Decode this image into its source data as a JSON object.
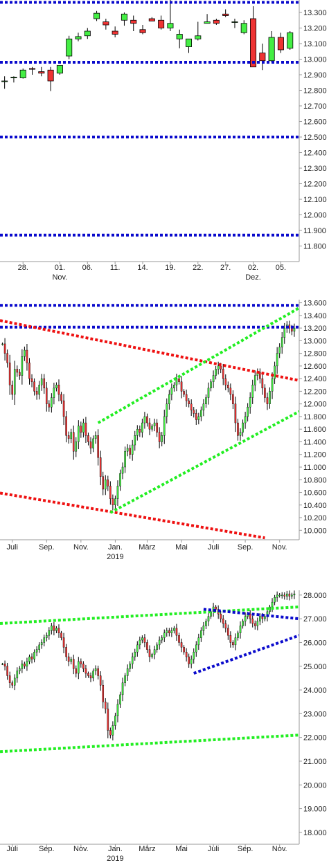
{
  "colors": {
    "up": "#44ee44",
    "down": "#ee3333",
    "outline": "#000000",
    "blue": "#0a0acc",
    "red": "#ee1111",
    "green": "#22ee22",
    "grid": "#cccccc",
    "axis": "#999999"
  },
  "chart_data": [
    {
      "type": "candlestick",
      "ylim": [
        11700,
        13380
      ],
      "yticks": [
        11800,
        11900,
        12000,
        12100,
        12200,
        12300,
        12400,
        12500,
        12600,
        12700,
        12800,
        12900,
        13000,
        13100,
        13200,
        13300
      ],
      "ytick_labels": [
        "11.800",
        "11.900",
        "12.000",
        "12.100",
        "12.200",
        "12.300",
        "12.400",
        "12.500",
        "12.600",
        "12.700",
        "12.800",
        "12.900",
        "13.000",
        "13.100",
        "13.200",
        "13.300"
      ],
      "xlim": [
        -0.5,
        32
      ],
      "xticks": [
        {
          "x": 2,
          "label": "28."
        },
        {
          "x": 6,
          "label": "01.",
          "sub": "Nov."
        },
        {
          "x": 9,
          "label": "06."
        },
        {
          "x": 12,
          "label": "11."
        },
        {
          "x": 15,
          "label": "14."
        },
        {
          "x": 18,
          "label": "19."
        },
        {
          "x": 21,
          "label": "22."
        },
        {
          "x": 24,
          "label": "27."
        },
        {
          "x": 27,
          "label": "02.",
          "sub": "Dez."
        },
        {
          "x": 30,
          "label": "05."
        }
      ],
      "candles": [
        {
          "x": 0,
          "o": 12860,
          "h": 12890,
          "l": 12810,
          "c": 12860
        },
        {
          "x": 1,
          "o": 12880,
          "h": 12890,
          "l": 12850,
          "c": 12885
        },
        {
          "x": 2,
          "o": 12880,
          "h": 12940,
          "l": 12875,
          "c": 12930
        },
        {
          "x": 3,
          "o": 12940,
          "h": 12950,
          "l": 12900,
          "c": 12935
        },
        {
          "x": 4,
          "o": 12920,
          "h": 12950,
          "l": 12890,
          "c": 12910
        },
        {
          "x": 5,
          "o": 12930,
          "h": 12950,
          "l": 12795,
          "c": 12860
        },
        {
          "x": 6,
          "o": 12910,
          "h": 12960,
          "l": 12900,
          "c": 12960
        },
        {
          "x": 7,
          "o": 13020,
          "h": 13150,
          "l": 13000,
          "c": 13130
        },
        {
          "x": 8,
          "o": 13130,
          "h": 13170,
          "l": 13115,
          "c": 13145
        },
        {
          "x": 9,
          "o": 13150,
          "h": 13200,
          "l": 13130,
          "c": 13180
        },
        {
          "x": 10,
          "o": 13260,
          "h": 13310,
          "l": 13245,
          "c": 13295
        },
        {
          "x": 11,
          "o": 13240,
          "h": 13260,
          "l": 13190,
          "c": 13220
        },
        {
          "x": 12,
          "o": 13180,
          "h": 13210,
          "l": 13140,
          "c": 13160
        },
        {
          "x": 13,
          "o": 13250,
          "h": 13300,
          "l": 13215,
          "c": 13290
        },
        {
          "x": 14,
          "o": 13250,
          "h": 13280,
          "l": 13180,
          "c": 13230
        },
        {
          "x": 15,
          "o": 13190,
          "h": 13220,
          "l": 13160,
          "c": 13170
        },
        {
          "x": 16,
          "o": 13260,
          "h": 13270,
          "l": 13250,
          "c": 13245
        },
        {
          "x": 17,
          "o": 13250,
          "h": 13280,
          "l": 13190,
          "c": 13200
        },
        {
          "x": 18,
          "o": 13200,
          "h": 13380,
          "l": 13180,
          "c": 13230
        },
        {
          "x": 19,
          "o": 13130,
          "h": 13190,
          "l": 13070,
          "c": 13160
        },
        {
          "x": 20,
          "o": 13080,
          "h": 13130,
          "l": 13040,
          "c": 13130
        },
        {
          "x": 21,
          "o": 13130,
          "h": 13240,
          "l": 13120,
          "c": 13150
        },
        {
          "x": 22,
          "o": 13230,
          "h": 13290,
          "l": 13230,
          "c": 13240
        },
        {
          "x": 23,
          "o": 13250,
          "h": 13260,
          "l": 13220,
          "c": 13230
        },
        {
          "x": 24,
          "o": 13290,
          "h": 13320,
          "l": 13270,
          "c": 13280
        },
        {
          "x": 25,
          "o": 13240,
          "h": 13260,
          "l": 13200,
          "c": 13240
        },
        {
          "x": 26,
          "o": 13170,
          "h": 13250,
          "l": 13160,
          "c": 13230
        },
        {
          "x": 27,
          "o": 13260,
          "h": 13340,
          "l": 12950,
          "c": 12950
        },
        {
          "x": 28,
          "o": 13040,
          "h": 13100,
          "l": 12930,
          "c": 12990
        },
        {
          "x": 29,
          "o": 12990,
          "h": 13180,
          "l": 12980,
          "c": 13140
        },
        {
          "x": 30,
          "o": 13140,
          "h": 13170,
          "l": 13040,
          "c": 13060
        },
        {
          "x": 31,
          "o": 13070,
          "h": 13180,
          "l": 13060,
          "c": 13170
        }
      ],
      "lines": [
        {
          "color": "blue",
          "style": "dotted",
          "x1": -0.5,
          "y1": 13365,
          "x2": 32,
          "y2": 13365
        },
        {
          "color": "blue",
          "style": "dotted",
          "x1": -0.5,
          "y1": 12980,
          "x2": 32,
          "y2": 12980
        },
        {
          "color": "blue",
          "style": "dotted",
          "x1": -0.5,
          "y1": 12500,
          "x2": 32,
          "y2": 12500
        },
        {
          "color": "blue",
          "style": "dotted",
          "x1": -0.5,
          "y1": 11870,
          "x2": 32,
          "y2": 11870
        }
      ]
    },
    {
      "type": "candlestick",
      "ylim": [
        9850,
        13650
      ],
      "yticks": [
        10000,
        10200,
        10400,
        10600,
        10800,
        11000,
        11200,
        11400,
        11600,
        11800,
        12000,
        12200,
        12400,
        12600,
        12800,
        13000,
        13200,
        13400,
        13600
      ],
      "ytick_labels": [
        "10.000",
        "10.200",
        "10.400",
        "10.600",
        "10.800",
        "11.000",
        "11.200",
        "11.400",
        "11.600",
        "11.800",
        "12.000",
        "12.200",
        "12.400",
        "12.600",
        "12.800",
        "13.000",
        "13.200",
        "13.400",
        "13.600"
      ],
      "xlim": [
        -1,
        121
      ],
      "xticks": [
        {
          "x": 4,
          "label": "Juli"
        },
        {
          "x": 18,
          "label": "Sep."
        },
        {
          "x": 32,
          "label": "Nov."
        },
        {
          "x": 46,
          "label": "Jan.",
          "sub": "2019"
        },
        {
          "x": 59,
          "label": "März"
        },
        {
          "x": 73,
          "label": "Mai"
        },
        {
          "x": 86,
          "label": "Juli"
        },
        {
          "x": 99,
          "label": "Sep."
        },
        {
          "x": 113,
          "label": "Nov."
        }
      ],
      "closes": [
        12950,
        12800,
        12650,
        12300,
        12150,
        12550,
        12500,
        12450,
        12750,
        12850,
        12650,
        12400,
        12350,
        12200,
        12150,
        12300,
        12400,
        12250,
        12000,
        11950,
        12100,
        12250,
        12300,
        12150,
        12050,
        11800,
        11500,
        11450,
        11550,
        11250,
        11400,
        11650,
        11550,
        11700,
        11500,
        11400,
        11300,
        11450,
        11500,
        11150,
        10850,
        10650,
        10800,
        10700,
        10500,
        10400,
        10500,
        10700,
        10900,
        11000,
        11250,
        11300,
        11200,
        11350,
        11500,
        11600,
        11550,
        11700,
        11800,
        11700,
        11600,
        11650,
        11700,
        11550,
        11400,
        11500,
        11800,
        12000,
        12150,
        12250,
        12300,
        12400,
        12350,
        12200,
        12150,
        12050,
        12000,
        11900,
        11850,
        11750,
        11800,
        11900,
        12000,
        12100,
        12250,
        12350,
        12450,
        12550,
        12600,
        12550,
        12400,
        12300,
        12250,
        12150,
        12000,
        11700,
        11500,
        11550,
        11700,
        11800,
        11950,
        12100,
        12300,
        12450,
        12500,
        12400,
        12250,
        12100,
        12000,
        12200,
        12400,
        12600,
        12800,
        12900,
        13050,
        13200,
        13250,
        13200,
        13150,
        13200
      ],
      "lines": [
        {
          "color": "blue",
          "style": "dotted",
          "x1": -1,
          "y1": 13560,
          "x2": 121,
          "y2": 13560
        },
        {
          "color": "blue",
          "style": "dotted",
          "x1": -1,
          "y1": 13215,
          "x2": 121,
          "y2": 13215
        },
        {
          "color": "red",
          "style": "dotted",
          "x1": -1,
          "y1": 13320,
          "x2": 121,
          "y2": 12370
        },
        {
          "color": "red",
          "style": "dotted",
          "x1": -1,
          "y1": 10590,
          "x2": 107,
          "y2": 9880
        },
        {
          "color": "green",
          "style": "dotted",
          "x1": 39,
          "y1": 11700,
          "x2": 121,
          "y2": 13520
        },
        {
          "color": "green",
          "style": "dotted",
          "x1": 44,
          "y1": 10280,
          "x2": 121,
          "y2": 11880
        }
      ]
    },
    {
      "type": "candlestick",
      "ylim": [
        17500,
        28200
      ],
      "yticks": [
        18000,
        19000,
        20000,
        21000,
        22000,
        23000,
        24000,
        25000,
        26000,
        27000,
        28000
      ],
      "ytick_labels": [
        "18.000",
        "19.000",
        "20.000",
        "21.000",
        "22.000",
        "23.000",
        "24.000",
        "25.000",
        "26.000",
        "27.000",
        "28.000"
      ],
      "xlim": [
        -1,
        121
      ],
      "xticks": [
        {
          "x": 4,
          "label": "Juli"
        },
        {
          "x": 18,
          "label": "Sep."
        },
        {
          "x": 32,
          "label": "Nov."
        },
        {
          "x": 46,
          "label": "Jan.",
          "sub": "2019"
        },
        {
          "x": 59,
          "label": "März"
        },
        {
          "x": 73,
          "label": "Mai"
        },
        {
          "x": 86,
          "label": "Juli"
        },
        {
          "x": 99,
          "label": "Sep."
        },
        {
          "x": 113,
          "label": "Nov."
        }
      ],
      "closes": [
        25100,
        25000,
        24600,
        24300,
        24200,
        24500,
        24800,
        24900,
        25100,
        25000,
        25200,
        25400,
        25300,
        25600,
        25700,
        25900,
        26000,
        26200,
        26300,
        26500,
        26700,
        26500,
        26600,
        26400,
        26200,
        25800,
        25400,
        25200,
        25300,
        24900,
        24700,
        25200,
        25100,
        24900,
        24700,
        24600,
        24500,
        24800,
        24900,
        24600,
        24200,
        23500,
        23200,
        22300,
        22100,
        22500,
        22900,
        23400,
        23800,
        24300,
        24600,
        24900,
        25100,
        25400,
        25600,
        25900,
        26100,
        26200,
        26000,
        25700,
        25400,
        25500,
        25700,
        25900,
        26100,
        26200,
        26400,
        26500,
        26400,
        26500,
        26600,
        26300,
        26000,
        25800,
        25600,
        25400,
        25100,
        25300,
        25600,
        25900,
        26200,
        26500,
        26700,
        26900,
        27100,
        27300,
        27500,
        27400,
        27200,
        27000,
        26800,
        26600,
        26300,
        26000,
        25900,
        26200,
        26400,
        26700,
        26900,
        27100,
        27200,
        27000,
        26800,
        26700,
        26900,
        27100,
        27000,
        27100,
        27300,
        27500,
        27700,
        27900,
        28000,
        28000,
        28000,
        27950,
        28050,
        27950,
        28000,
        28050
      ],
      "lines": [
        {
          "color": "green",
          "style": "dotted",
          "x1": -1,
          "y1": 26800,
          "x2": 121,
          "y2": 27500
        },
        {
          "color": "green",
          "style": "dotted",
          "x1": -1,
          "y1": 21400,
          "x2": 121,
          "y2": 22100
        },
        {
          "color": "blue",
          "style": "dotted",
          "x1": 78,
          "y1": 24700,
          "x2": 121,
          "y2": 26300
        },
        {
          "color": "blue",
          "style": "dotted",
          "x1": 82,
          "y1": 27400,
          "x2": 121,
          "y2": 27000
        }
      ]
    }
  ]
}
